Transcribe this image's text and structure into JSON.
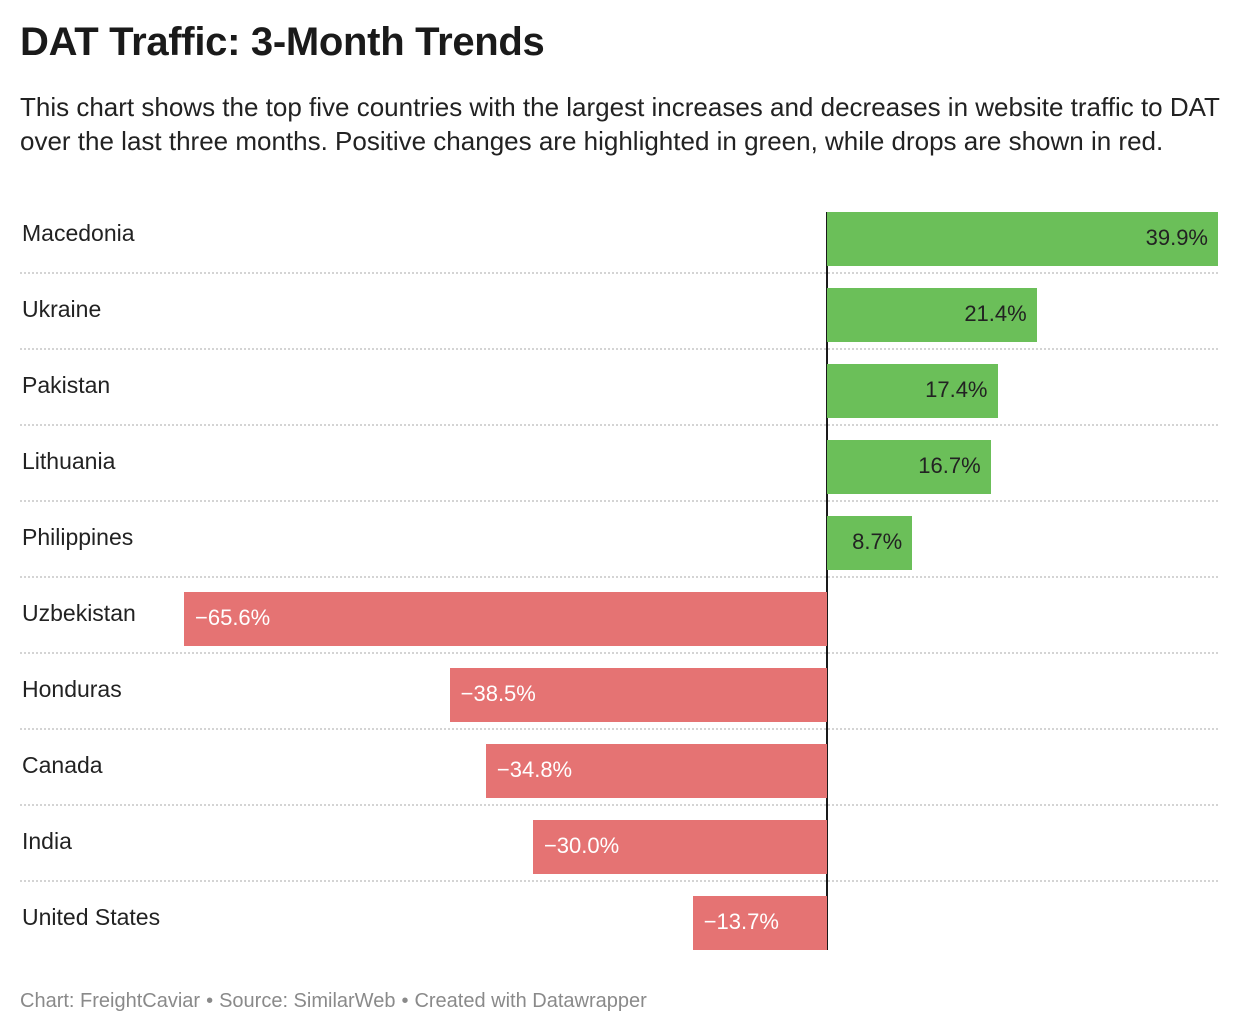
{
  "title": "DAT Traffic: 3-Month Trends",
  "description": "This chart shows the top five countries with the largest increases and decreases in website traffic to DAT over the last three months. Positive changes are highlighted in green, while drops are shown in red.",
  "footer": {
    "chart": "Chart: FreightCaviar",
    "source": "Source: SimilarWeb",
    "created": "Created with Datawrapper",
    "separator": "•"
  },
  "colors": {
    "positive": "#6bbf59",
    "negative": "#e57373",
    "axis": "#1a1a1a"
  },
  "chart_data": {
    "type": "bar",
    "orientation": "horizontal",
    "title": "DAT Traffic: 3-Month Trends",
    "xlabel": "",
    "ylabel": "",
    "unit": "%",
    "xlim": [
      -65.6,
      39.9
    ],
    "categories": [
      "Macedonia",
      "Ukraine",
      "Pakistan",
      "Lithuania",
      "Philippines",
      "Uzbekistan",
      "Honduras",
      "Canada",
      "India",
      "United States"
    ],
    "values": [
      39.9,
      21.4,
      17.4,
      16.7,
      8.7,
      -65.6,
      -38.5,
      -34.8,
      -30.0,
      -13.7
    ],
    "value_labels": [
      "39.9%",
      "21.4%",
      "17.4%",
      "16.7%",
      "8.7%",
      "−65.6%",
      "−38.5%",
      "−34.8%",
      "−30.0%",
      "−13.7%"
    ]
  }
}
